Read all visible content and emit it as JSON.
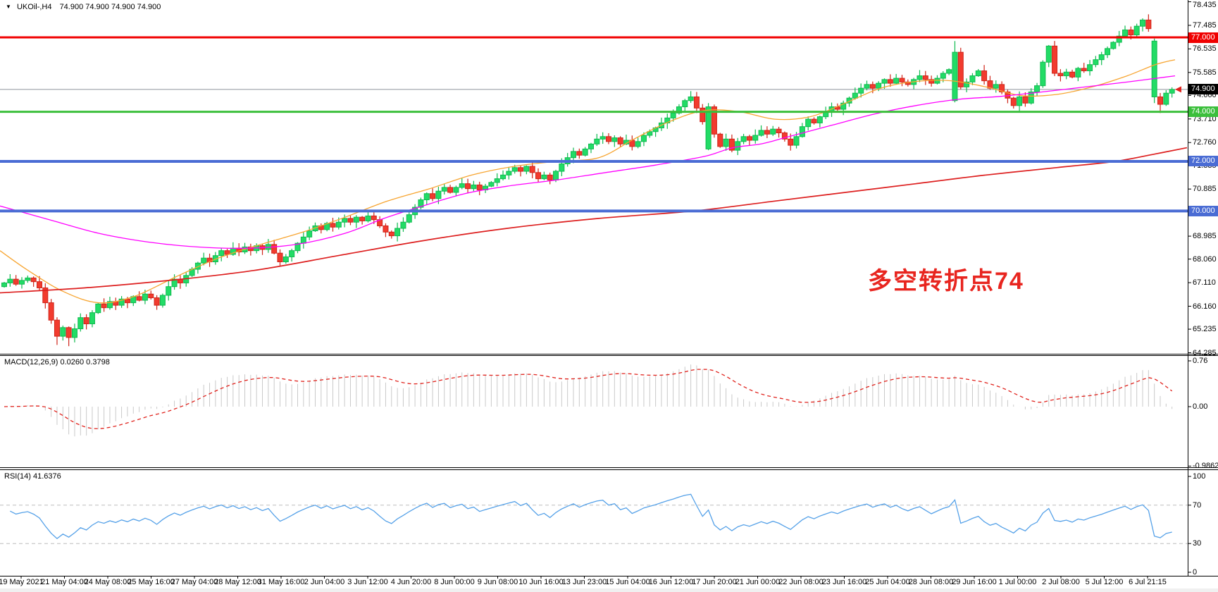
{
  "window": {
    "dropdown_icon": "▼",
    "symbol_label": "UKOil-,H4",
    "quote_label": "74.900 74.900 74.900 74.900"
  },
  "panels": {
    "macd": {
      "title": "MACD(12,26,9)",
      "values": "0.0260 0.3798",
      "y_ticks": [
        "0.76",
        "0.00",
        "-0.9862"
      ]
    },
    "rsi": {
      "title": "RSI(14)",
      "values": "41.6376",
      "y_ticks": [
        "100",
        "70",
        "30",
        "0"
      ]
    }
  },
  "annotation": {
    "text": "多空转折点74",
    "color": "#e8251f"
  },
  "chart_data": {
    "type": "candlestick",
    "symbol": "UKOil-",
    "timeframe": "H4",
    "last_price": "74.900",
    "ylim": [
      64.285,
      78.435
    ],
    "y_ticks": [
      "78.435",
      "77.485",
      "76.535",
      "75.585",
      "74.660",
      "73.710",
      "72.760",
      "71.835",
      "70.885",
      "69.935",
      "68.985",
      "68.060",
      "67.110",
      "66.160",
      "65.235",
      "64.285"
    ],
    "x_labels": [
      "19 May 2021",
      "21 May 04:00",
      "24 May 08:00",
      "25 May 16:00",
      "27 May 04:00",
      "28 May 12:00",
      "31 May 16:00",
      "2 Jun 04:00",
      "3 Jun 12:00",
      "4 Jun 20:00",
      "8 Jun 00:00",
      "9 Jun 08:00",
      "10 Jun 16:00",
      "13 Jun 23:00",
      "15 Jun 04:00",
      "16 Jun 12:00",
      "17 Jun 20:00",
      "21 Jun 00:00",
      "22 Jun 08:00",
      "23 Jun 16:00",
      "25 Jun 04:00",
      "28 Jun 08:00",
      "29 Jun 16:00",
      "1 Jul 00:00",
      "2 Jul 08:00",
      "5 Jul 12:00",
      "6 Jul 21:15"
    ],
    "closes": [
      67.1,
      67.25,
      67.05,
      67.2,
      67.3,
      67.15,
      66.9,
      66.3,
      65.6,
      64.95,
      65.3,
      64.9,
      65.25,
      65.7,
      65.45,
      65.9,
      66.25,
      66.1,
      66.35,
      66.2,
      66.45,
      66.3,
      66.55,
      66.4,
      66.65,
      66.5,
      66.2,
      66.6,
      66.95,
      67.25,
      67.1,
      67.4,
      67.65,
      67.9,
      68.1,
      67.95,
      68.2,
      68.4,
      68.25,
      68.5,
      68.35,
      68.55,
      68.4,
      68.6,
      68.45,
      68.65,
      68.3,
      67.95,
      68.15,
      68.4,
      68.7,
      68.95,
      69.2,
      69.4,
      69.25,
      69.5,
      69.35,
      69.55,
      69.7,
      69.55,
      69.75,
      69.6,
      69.8,
      69.65,
      69.4,
      69.15,
      69.0,
      69.3,
      69.55,
      69.85,
      70.15,
      70.45,
      70.7,
      70.5,
      70.8,
      70.95,
      70.75,
      70.95,
      71.1,
      70.9,
      71.05,
      70.85,
      71.0,
      71.15,
      71.3,
      71.45,
      71.6,
      71.75,
      71.6,
      71.8,
      71.55,
      71.3,
      71.45,
      71.25,
      71.6,
      71.9,
      72.15,
      72.4,
      72.25,
      72.5,
      72.7,
      72.9,
      73.0,
      72.8,
      72.95,
      72.7,
      72.85,
      72.6,
      72.8,
      73.05,
      73.2,
      73.35,
      73.55,
      73.75,
      73.95,
      74.2,
      74.45,
      74.6,
      74.15,
      73.6,
      74.2,
      73.1,
      72.6,
      72.9,
      72.45,
      72.8,
      73.0,
      72.85,
      73.05,
      73.25,
      73.1,
      73.3,
      73.15,
      72.9,
      72.65,
      73.0,
      73.4,
      73.7,
      73.55,
      73.8,
      74.0,
      74.2,
      74.1,
      74.35,
      74.55,
      74.75,
      74.95,
      75.1,
      74.95,
      75.15,
      75.3,
      75.15,
      75.35,
      75.2,
      75.1,
      75.3,
      75.45,
      75.3,
      75.15,
      75.35,
      75.55,
      75.7,
      76.4,
      75.0,
      75.2,
      75.45,
      75.65,
      75.25,
      74.95,
      75.1,
      74.8,
      74.55,
      74.25,
      74.6,
      74.35,
      74.8,
      75.05,
      76.0,
      76.65,
      75.55,
      75.45,
      75.6,
      75.4,
      75.75,
      75.65,
      75.9,
      76.1,
      76.3,
      76.55,
      76.8,
      77.05,
      77.3,
      77.1,
      77.45,
      77.7,
      77.35,
      74.6,
      74.3,
      74.75,
      74.9
    ],
    "overrides": {
      "9": {
        "low": 64.6
      },
      "11": {
        "low": 64.55
      },
      "120": {
        "open": 72.5,
        "high": 74.35,
        "low": 72.45
      },
      "162": {
        "open": 74.45,
        "low": 74.38,
        "high": 76.85,
        "up": 1
      },
      "196": {
        "open": 76.85,
        "high": 76.95,
        "low": 74.35,
        "up": 1
      },
      "197": {
        "low": 73.95
      }
    },
    "hlines": [
      {
        "price": 74.9,
        "color": "#8e959c",
        "width": 1
      },
      {
        "price": 77.0,
        "color": "#f00000",
        "width": 3
      },
      {
        "price": 74.0,
        "color": "#3bbf3b",
        "width": 3
      },
      {
        "price": 72.0,
        "color": "#4a6cd4",
        "width": 4
      },
      {
        "price": 70.0,
        "color": "#4a6cd4",
        "width": 4
      }
    ],
    "price_badges": [
      {
        "label": "77.000",
        "price": 77.0,
        "bg": "#f00000"
      },
      {
        "label": "74.900",
        "price": 74.9,
        "bg": "#000000"
      },
      {
        "label": "74.000",
        "price": 74.0,
        "bg": "#3bbf3b"
      },
      {
        "label": "72.000",
        "price": 72.0,
        "bg": "#4a6cd4"
      },
      {
        "label": "70.000",
        "price": 70.0,
        "bg": "#4a6cd4"
      }
    ],
    "ma_lines": [
      {
        "name": "ma-fast-orange",
        "color": "#f7a531",
        "width": 1.3,
        "points": [
          [
            0,
            68.4
          ],
          [
            40,
            67.6
          ],
          [
            90,
            66.75
          ],
          [
            140,
            66.3
          ],
          [
            190,
            66.55
          ],
          [
            250,
            67.35
          ],
          [
            310,
            68.1
          ],
          [
            370,
            68.65
          ],
          [
            430,
            69.15
          ],
          [
            490,
            69.75
          ],
          [
            550,
            70.4
          ],
          [
            610,
            70.9
          ],
          [
            670,
            71.45
          ],
          [
            730,
            71.8
          ],
          [
            790,
            72.0
          ],
          [
            850,
            72.15
          ],
          [
            900,
            72.9
          ],
          [
            950,
            73.6
          ],
          [
            1000,
            74.05
          ],
          [
            1050,
            74.0
          ],
          [
            1100,
            73.7
          ],
          [
            1150,
            73.8
          ],
          [
            1200,
            74.35
          ],
          [
            1250,
            74.95
          ],
          [
            1300,
            75.22
          ],
          [
            1350,
            75.25
          ],
          [
            1400,
            75.0
          ],
          [
            1450,
            74.65
          ],
          [
            1500,
            74.7
          ],
          [
            1550,
            75.0
          ],
          [
            1600,
            75.45
          ],
          [
            1640,
            75.9
          ],
          [
            1668,
            76.1
          ]
        ]
      },
      {
        "name": "ma-mid-magenta",
        "color": "#ff00ff",
        "width": 1.3,
        "points": [
          [
            0,
            70.2
          ],
          [
            70,
            69.65
          ],
          [
            140,
            69.1
          ],
          [
            210,
            68.75
          ],
          [
            280,
            68.55
          ],
          [
            350,
            68.5
          ],
          [
            420,
            68.65
          ],
          [
            490,
            69.1
          ],
          [
            545,
            69.7
          ],
          [
            600,
            70.2
          ],
          [
            660,
            70.7
          ],
          [
            720,
            71.0
          ],
          [
            790,
            71.25
          ],
          [
            860,
            71.55
          ],
          [
            930,
            71.85
          ],
          [
            1000,
            72.2
          ],
          [
            1040,
            72.55
          ],
          [
            1080,
            72.7
          ],
          [
            1120,
            73.0
          ],
          [
            1180,
            73.45
          ],
          [
            1240,
            73.9
          ],
          [
            1300,
            74.25
          ],
          [
            1360,
            74.5
          ],
          [
            1420,
            74.62
          ],
          [
            1480,
            74.8
          ],
          [
            1540,
            75.0
          ],
          [
            1600,
            75.2
          ],
          [
            1668,
            75.45
          ]
        ]
      },
      {
        "name": "ma-slow-red",
        "color": "#dd1f1f",
        "width": 1.7,
        "points": [
          [
            0,
            66.7
          ],
          [
            120,
            66.9
          ],
          [
            240,
            67.2
          ],
          [
            360,
            67.6
          ],
          [
            480,
            68.2
          ],
          [
            600,
            68.8
          ],
          [
            720,
            69.3
          ],
          [
            850,
            69.7
          ],
          [
            985,
            70.0
          ],
          [
            1100,
            70.4
          ],
          [
            1200,
            70.75
          ],
          [
            1300,
            71.1
          ],
          [
            1400,
            71.45
          ],
          [
            1500,
            71.75
          ],
          [
            1583,
            72.0
          ],
          [
            1640,
            72.3
          ],
          [
            1685,
            72.55
          ]
        ]
      }
    ],
    "indicators": {
      "macd": {
        "fast": 12,
        "slow": 26,
        "signal": 9
      },
      "rsi": {
        "period": 14,
        "levels": [
          70,
          30
        ]
      }
    },
    "colors": {
      "up_fill": "#22dc66",
      "up_stroke": "#0fba4f",
      "down_fill": "#f23b2e",
      "down_stroke": "#cf2419",
      "macd_hist": "#c9c9c9",
      "macd_signal": "#e0231d",
      "rsi_line": "#55a1e8",
      "level_dash": "#bbbbbb",
      "border": "#000000"
    }
  }
}
